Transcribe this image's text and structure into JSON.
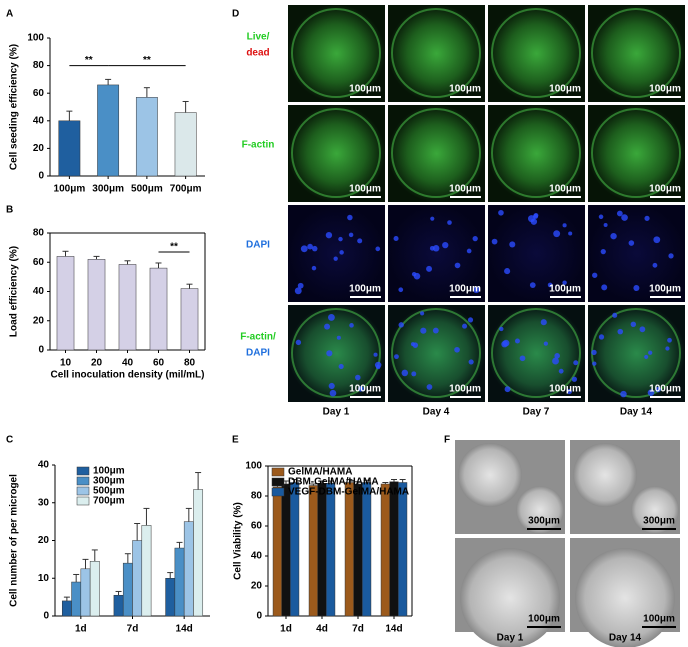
{
  "panel_labels": [
    "A",
    "B",
    "C",
    "D",
    "E",
    "F"
  ],
  "chart_data": [
    {
      "type": "bar",
      "y_label": "Cell seeding efficiency (%)",
      "categories": [
        "100μm",
        "300μm",
        "500μm",
        "700μm"
      ],
      "values": [
        40,
        66,
        57,
        46
      ],
      "errors": [
        7,
        4,
        7,
        8
      ],
      "colors": [
        "#1f5f9f",
        "#4a8fc6",
        "#9cc4e6",
        "#dbe8ea"
      ],
      "ylim": [
        0,
        100
      ],
      "yticks": [
        0,
        20,
        40,
        60,
        80,
        100
      ],
      "grid": false,
      "annotations": [
        "**",
        "**"
      ]
    },
    {
      "type": "bar",
      "y_label": "Load efficiency (%)",
      "x_label": "Cell inoculation density (mil/mL)",
      "categories": [
        "10",
        "20",
        "40",
        "60",
        "80"
      ],
      "values": [
        64,
        62,
        58.5,
        56,
        42
      ],
      "errors": [
        3.5,
        2,
        2.5,
        3.5,
        3
      ],
      "color": "#d4d0e6",
      "ylim": [
        0,
        80
      ],
      "yticks": [
        0,
        20,
        40,
        60,
        80
      ],
      "grid": false,
      "annotations": [
        "**"
      ]
    },
    {
      "type": "bar",
      "y_label": "Cell number of per microgel",
      "categories": [
        "1d",
        "7d",
        "14d"
      ],
      "legend": "upper left",
      "ylim": [
        0,
        40
      ],
      "yticks": [
        0,
        10,
        20,
        30,
        40
      ],
      "grid": false,
      "series": [
        {
          "name": "100μm",
          "color": "#1f5f9f",
          "values": [
            4,
            5.5,
            10
          ],
          "errors": [
            1,
            1,
            1.5
          ]
        },
        {
          "name": "300μm",
          "color": "#4a8fc6",
          "values": [
            9,
            14,
            18
          ],
          "errors": [
            2,
            2.5,
            1.5
          ]
        },
        {
          "name": "500μm",
          "color": "#9cc4e6",
          "values": [
            12.5,
            20,
            25
          ],
          "errors": [
            2.5,
            4.5,
            3.5
          ]
        },
        {
          "name": "700μm",
          "color": "#dbeeee",
          "values": [
            14.5,
            24,
            33.5
          ],
          "errors": [
            3,
            4.5,
            4.5
          ]
        }
      ]
    },
    {
      "type": "bar",
      "y_label": "Cell Viability (%)",
      "categories": [
        "1d",
        "4d",
        "7d",
        "14d"
      ],
      "legend": "upper left",
      "ylim": [
        0,
        100
      ],
      "yticks": [
        0,
        20,
        40,
        60,
        80,
        100
      ],
      "grid": false,
      "series": [
        {
          "name": "GelMA/HAMA",
          "color": "#9c5a1c",
          "values": [
            86,
            87,
            89,
            88
          ],
          "errors": [
            2,
            1,
            2,
            1
          ]
        },
        {
          "name": "DBM-GelMA/HAMA",
          "color": "#111111",
          "values": [
            88,
            88.5,
            88,
            89.5
          ],
          "errors": [
            2,
            1.5,
            1.5,
            1.5
          ]
        },
        {
          "name": "VEGF-DBM-GelMA/HAMA",
          "color": "#1a5a9e",
          "values": [
            89,
            88.5,
            89,
            89
          ],
          "errors": [
            2,
            1.5,
            1.5,
            2
          ]
        }
      ]
    }
  ],
  "panel_d": {
    "rows": [
      [
        "Live/",
        "dead"
      ],
      [
        "F-actin"
      ],
      [
        "DAPI"
      ],
      [
        "F-actin/",
        "DAPI"
      ]
    ],
    "columns": [
      "Day 1",
      "Day 4",
      "Day 7",
      "Day 14"
    ],
    "scale_bar": "100μm"
  },
  "panel_f": {
    "scale_bars": [
      "300μm",
      "100μm"
    ],
    "columns": [
      "Day 1",
      "Day 14"
    ]
  }
}
